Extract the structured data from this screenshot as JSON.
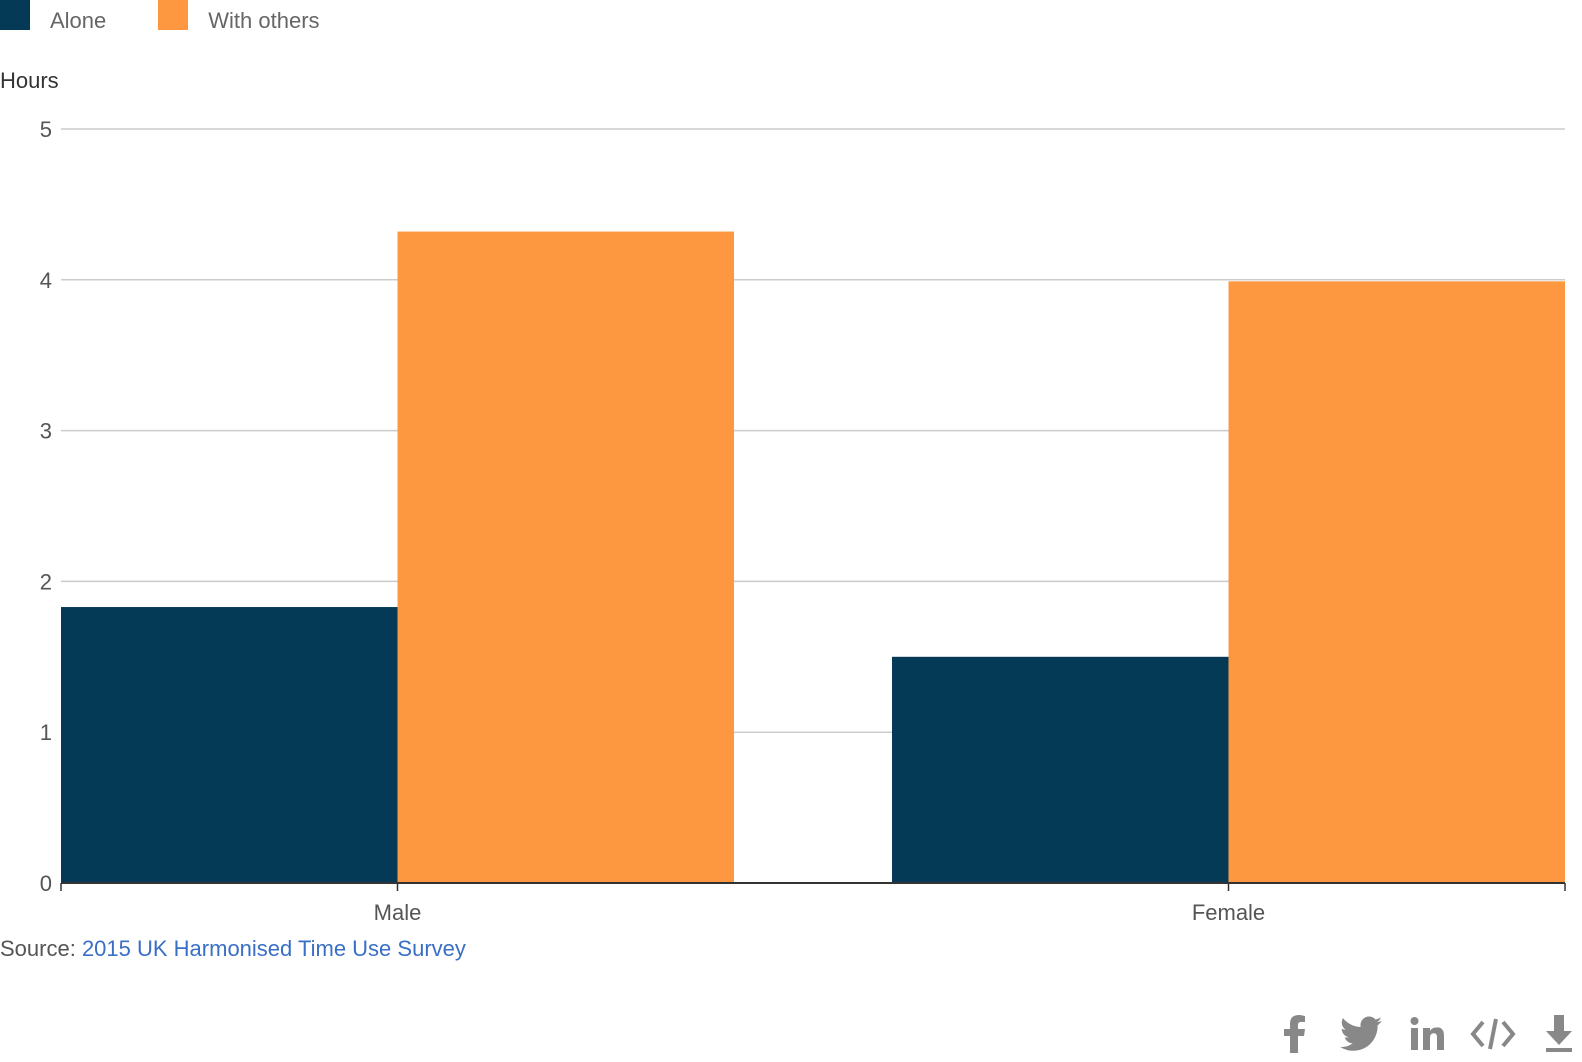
{
  "legend": [
    {
      "label": "Alone",
      "color": "#053a57"
    },
    {
      "label": "With others",
      "color": "#fd9840"
    }
  ],
  "y_unit": "Hours",
  "source": {
    "prefix": "Source: ",
    "link_text": "2015 UK Harmonised Time Use Survey"
  },
  "chart_data": {
    "type": "bar",
    "categories": [
      "Male",
      "Female"
    ],
    "series": [
      {
        "name": "Alone",
        "values": [
          1.83,
          1.5
        ],
        "color": "#053a57"
      },
      {
        "name": "With others",
        "values": [
          4.32,
          3.99
        ],
        "color": "#fd9840"
      }
    ],
    "ylabel": "Hours",
    "ylim": [
      0,
      5
    ],
    "yticks": [
      0,
      1,
      2,
      3,
      4,
      5
    ],
    "grid": true,
    "legend_position": "top-left"
  },
  "share_icons": [
    "facebook-icon",
    "twitter-icon",
    "linkedin-icon",
    "embed-icon",
    "download-icon"
  ],
  "colors": {
    "grid": "#cccccc",
    "axis": "#333333",
    "tick_text": "#555555",
    "icon": "#888888",
    "link": "#3a6fc6"
  }
}
